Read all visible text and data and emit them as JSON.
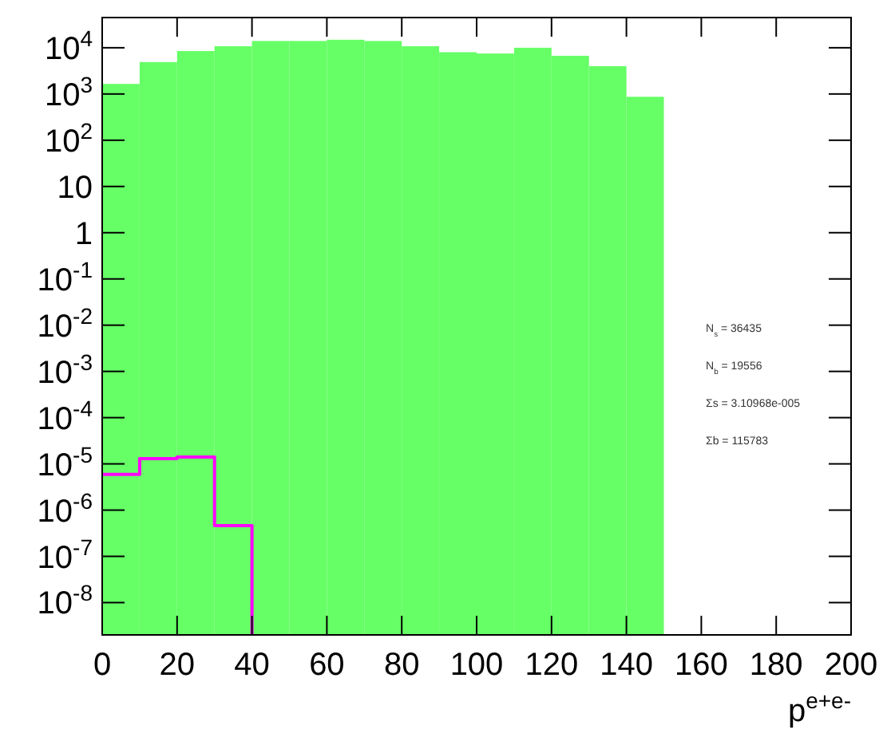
{
  "chart_data": {
    "type": "histogram",
    "xlabel": "p$^{e+e-}$",
    "log": "y",
    "bins": [
      0,
      10,
      20,
      30,
      40,
      50,
      60,
      70,
      80,
      90,
      100,
      110,
      120,
      130,
      140,
      150
    ],
    "series": [
      {
        "color": "#66ff66",
        "values": [
          1650,
          4900,
          8500,
          10800,
          14000,
          14000,
          14900,
          14000,
          10800,
          8000,
          7500,
          10000,
          6700,
          4000,
          870
        ]
      },
      {
        "type": "step",
        "color": "#ff00ff",
        "x": [
          0,
          10,
          20,
          30,
          40,
          40
        ],
        "values": [
          5.9e-06,
          1.3e-05,
          1.4e-05,
          4.6e-07,
          4.6e-07,
          2e-09
        ]
      }
    ],
    "xlim": [
      0,
      200
    ],
    "xticks": [
      0,
      20,
      40,
      60,
      80,
      100,
      120,
      140,
      160,
      180,
      200
    ],
    "ylim": [
      2e-09,
      45000
    ],
    "yticks": [
      {
        "value": 1e-08,
        "label": "10$^{-8}$"
      },
      {
        "value": 1e-07,
        "label": "10$^{-7}$"
      },
      {
        "value": 1e-06,
        "label": "10$^{-6}$"
      },
      {
        "value": 1e-05,
        "label": "10$^{-5}$"
      },
      {
        "value": 0.0001,
        "label": "10$^{-4}$"
      },
      {
        "value": 0.001,
        "label": "10$^{-3}$"
      },
      {
        "value": 0.01,
        "label": "10$^{-2}$"
      },
      {
        "value": 0.1,
        "label": "10$^{-1}$"
      },
      1,
      10,
      {
        "value": 100,
        "label": "10$^{2}$"
      },
      {
        "value": 1000,
        "label": "10$^{3}$"
      },
      {
        "value": 10000,
        "label": "10$^{4}$"
      }
    ],
    "annotations": [
      "N$_{s}$ = 36435",
      "N$_{b}$ = 19556",
      "Σs = 3.10968e-005",
      "Σb = 115783"
    ]
  }
}
